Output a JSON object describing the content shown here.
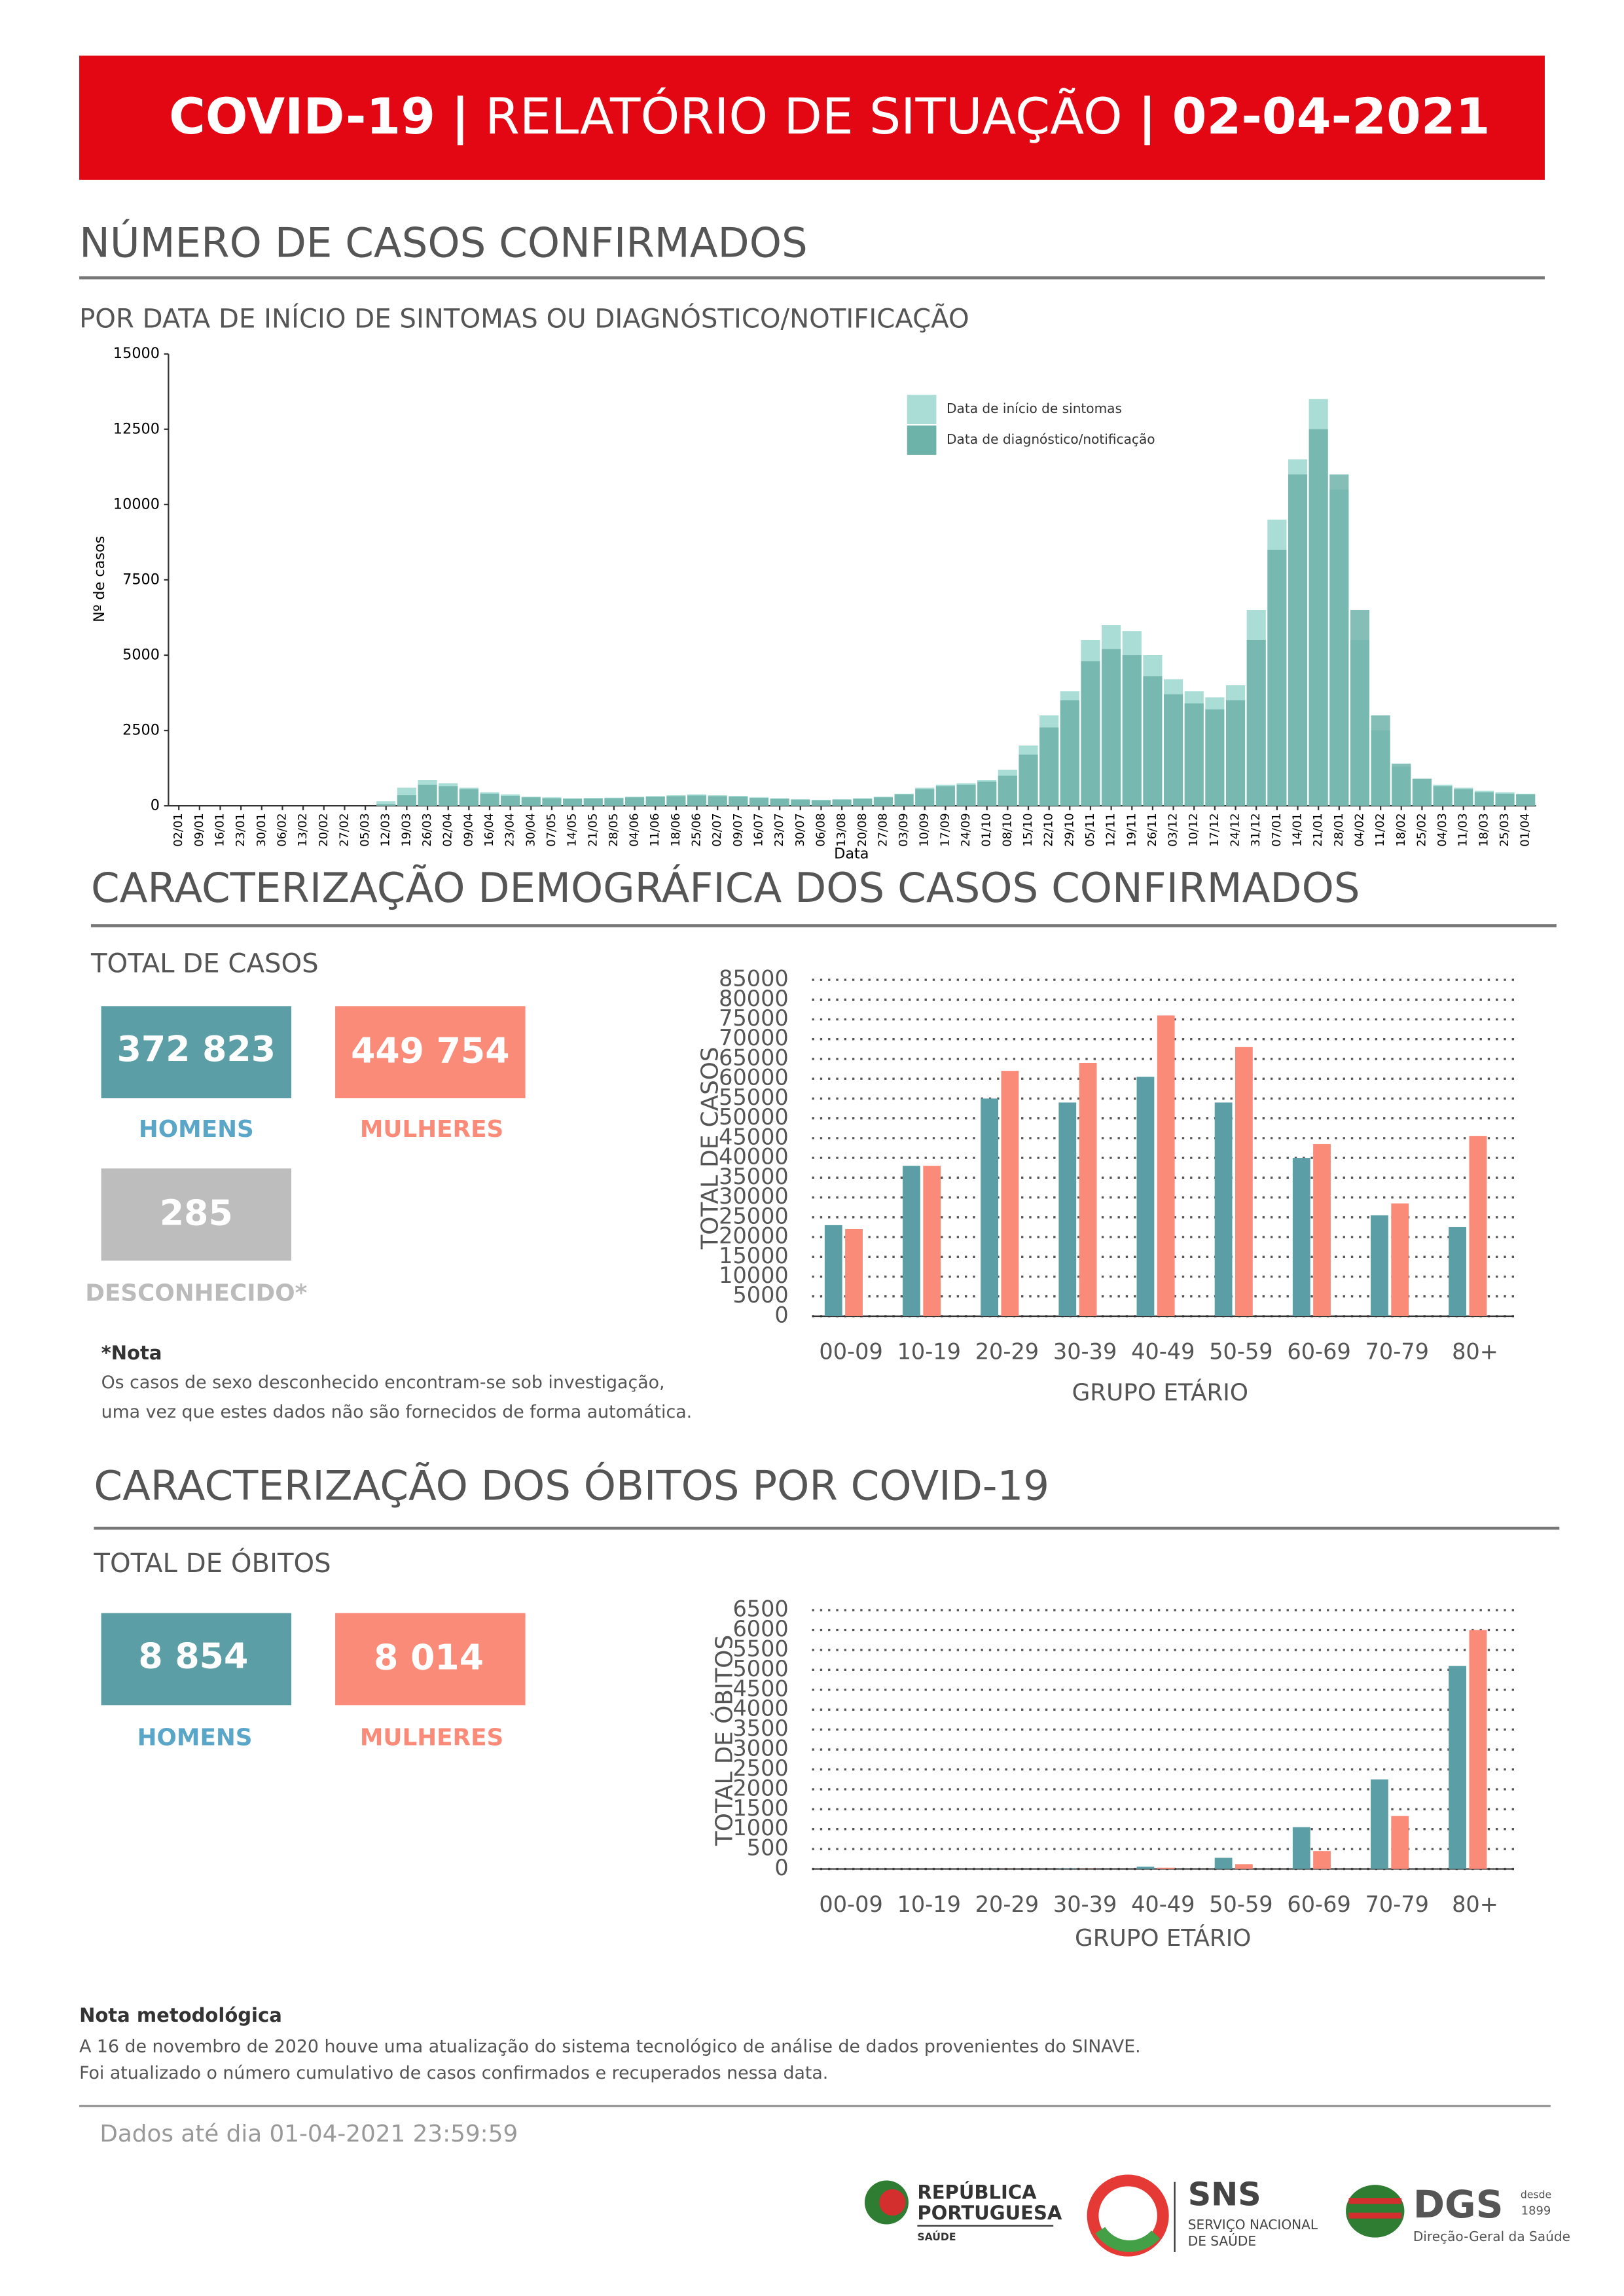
{
  "header": {
    "title_parts": [
      "COVID-19",
      "|",
      "RELATÓRIO DE SITUAÇÃO",
      "|",
      "02-04-2021"
    ]
  },
  "cases": {
    "title": "NÚMERO DE CASOS CONFIRMADOS"
  },
  "demographics": {
    "title": "CARACTERIZAÇÃO DEMOGRÁFICA DOS CASOS CONFIRMADOS",
    "total_label": "TOTAL DE CASOS",
    "boxes": [
      {
        "value": "372 823",
        "label": "HOMENS"
      },
      {
        "value": "449 754",
        "label": "MULHERES"
      },
      {
        "value": "285",
        "label": "DESCONHECIDO*"
      }
    ],
    "note_title": "*Nota",
    "note_lines": [
      "Os casos de sexo desconhecido encontram-se sob investigação,",
      "uma vez que estes dados não são fornecidos de forma automática."
    ]
  },
  "deaths": {
    "title": "CARACTERIZAÇÃO DOS ÓBITOS POR COVID-19",
    "total_label": "TOTAL DE ÓBITOS",
    "boxes": [
      {
        "value": "8 854",
        "label": "HOMENS"
      },
      {
        "value": "8 014",
        "label": "MULHERES"
      }
    ]
  },
  "methodology": {
    "title": "Nota metodológica",
    "lines": [
      "A 16 de novembro de 2020 houve uma atualização do sistema tecnológico de análise de dados provenientes do SINAVE.",
      "Foi atualizado o número cumulativo de casos confirmados e recuperados nessa data."
    ]
  },
  "footer": {
    "date_note": "Dados até dia 01-04-2021 23:59:59",
    "logos": [
      "REPÚBLICA",
      "PORTUGUESA",
      "SAÚDE",
      "SNS",
      "SERVIÇO NACIONAL",
      "DE SAÚDE",
      "DGS",
      "desde",
      "1899",
      "Direção-Geral da Saúde"
    ]
  },
  "chart_data": [
    {
      "type": "bar",
      "title": "POR DATA DE INÍCIO DE SINTOMAS OU DIAGNÓSTICO/NOTIFICAÇÃO",
      "x_label": "Data",
      "y_label": "Nº de casos",
      "categories": [
        "02/01",
        "09/01",
        "16/01",
        "23/01",
        "30/01",
        "06/02",
        "13/02",
        "20/02",
        "27/02",
        "05/03",
        "12/03",
        "19/03",
        "26/03",
        "02/04",
        "09/04",
        "16/04",
        "23/04",
        "30/04",
        "07/05",
        "14/05",
        "21/05",
        "28/05",
        "04/06",
        "11/06",
        "18/06",
        "25/06",
        "02/07",
        "09/07",
        "16/07",
        "23/07",
        "30/07",
        "06/08",
        "13/08",
        "20/08",
        "27/08",
        "03/09",
        "10/09",
        "17/09",
        "24/09",
        "01/10",
        "08/10",
        "15/10",
        "22/10",
        "29/10",
        "05/11",
        "12/11",
        "19/11",
        "26/11",
        "03/12",
        "10/12",
        "17/12",
        "24/12",
        "31/12",
        "07/01",
        "14/01",
        "21/01",
        "28/01",
        "04/02",
        "11/02",
        "18/02",
        "25/02",
        "04/03",
        "11/03",
        "18/03",
        "25/03",
        "01/04"
      ],
      "series": [
        {
          "name": "Data de início de sintomas",
          "color": "#a9ddd5",
          "values": [
            0,
            0,
            0,
            0,
            0,
            0,
            0,
            0,
            0,
            0,
            150,
            600,
            850,
            750,
            600,
            450,
            380,
            300,
            280,
            250,
            260,
            270,
            300,
            320,
            350,
            380,
            350,
            330,
            280,
            250,
            220,
            200,
            220,
            250,
            300,
            400,
            600,
            700,
            750,
            850,
            1200,
            2000,
            3000,
            3800,
            5500,
            6000,
            5800,
            5000,
            4200,
            3800,
            3600,
            4000,
            6500,
            9500,
            11500,
            13500,
            10500,
            5500,
            2500,
            1300,
            900,
            700,
            600,
            500,
            450,
            400
          ]
        },
        {
          "name": "Data de diagnóstico/notificação",
          "color": "#6eb3aa",
          "values": [
            0,
            0,
            0,
            0,
            0,
            0,
            0,
            0,
            0,
            0,
            50,
            350,
            700,
            650,
            550,
            400,
            330,
            280,
            250,
            230,
            240,
            250,
            280,
            300,
            320,
            340,
            320,
            300,
            260,
            230,
            200,
            180,
            200,
            230,
            280,
            380,
            550,
            650,
            700,
            800,
            1000,
            1700,
            2600,
            3500,
            4800,
            5200,
            5000,
            4300,
            3700,
            3400,
            3200,
            3500,
            5500,
            8500,
            11000,
            12500,
            11000,
            6500,
            3000,
            1400,
            900,
            650,
            550,
            450,
            400,
            380
          ]
        }
      ],
      "ylim": [
        0,
        15000
      ],
      "yticks": [
        0,
        2500,
        5000,
        7500,
        10000,
        12500,
        15000
      ],
      "legend": "top-right"
    },
    {
      "type": "bar",
      "x_label": "GRUPO ETÁRIO",
      "y_label": "TOTAL DE CASOS",
      "categories": [
        "00-09",
        "10-19",
        "20-29",
        "30-39",
        "40-49",
        "50-59",
        "60-69",
        "70-79",
        "80+"
      ],
      "series": [
        {
          "color": "#5b9ea6",
          "values": [
            23000,
            38000,
            55000,
            54000,
            60500,
            54000,
            40000,
            25500,
            22500
          ]
        },
        {
          "color": "#f98b78",
          "values": [
            22000,
            38000,
            62000,
            64000,
            76000,
            68000,
            43500,
            28500,
            45500
          ]
        }
      ],
      "ylim": [
        0,
        85000
      ],
      "yticks": [
        0,
        5000,
        10000,
        15000,
        20000,
        25000,
        30000,
        35000,
        40000,
        45000,
        50000,
        55000,
        60000,
        65000,
        70000,
        75000,
        80000,
        85000
      ],
      "grid": true
    },
    {
      "type": "bar",
      "x_label": "GRUPO ETÁRIO",
      "y_label": "TOTAL DE ÓBITOS",
      "categories": [
        "00-09",
        "10-19",
        "20-29",
        "30-39",
        "40-49",
        "50-59",
        "60-69",
        "70-79",
        "80+"
      ],
      "series": [
        {
          "color": "#5b9ea6",
          "values": [
            0,
            0,
            2,
            10,
            60,
            280,
            1050,
            2250,
            5100
          ]
        },
        {
          "color": "#f98b78",
          "values": [
            0,
            0,
            2,
            5,
            30,
            120,
            450,
            1330,
            6000
          ]
        }
      ],
      "ylim": [
        0,
        6500
      ],
      "yticks": [
        0,
        500,
        1000,
        1500,
        2000,
        2500,
        3000,
        3500,
        4000,
        4500,
        5000,
        5500,
        6000,
        6500
      ],
      "grid": true
    }
  ]
}
